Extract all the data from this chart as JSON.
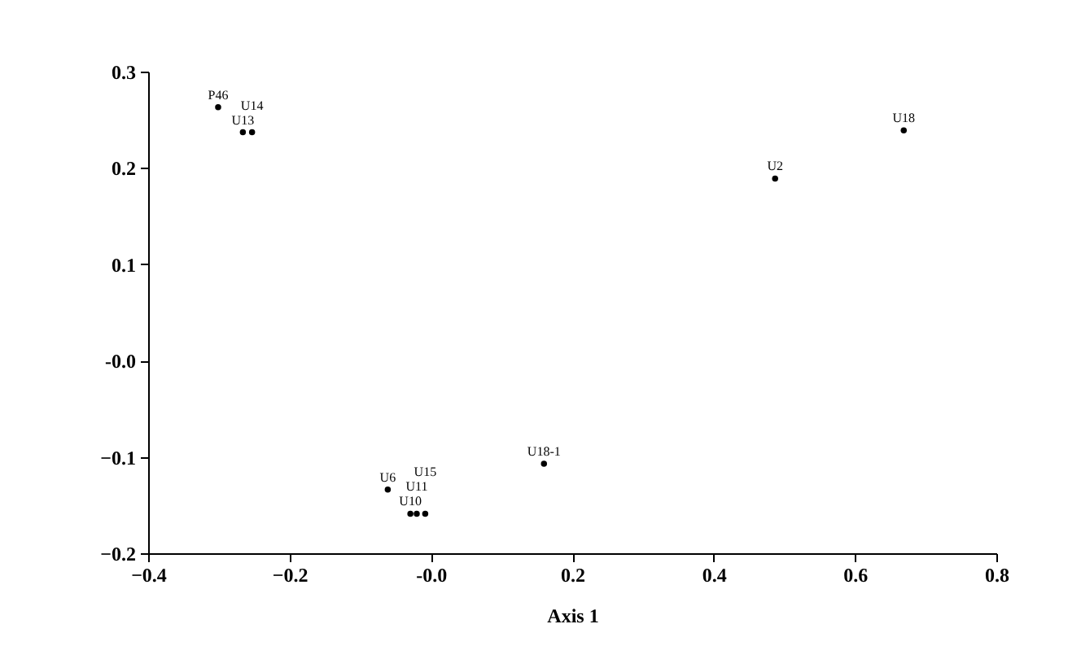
{
  "chart_data": {
    "type": "scatter",
    "xlabel": "Axis 1",
    "marker": "circle",
    "grid": false,
    "xlim": [
      -0.4,
      0.8
    ],
    "ylim": [
      -0.2,
      0.3
    ],
    "xticks": [
      -0.4,
      -0.2,
      {
        "value": 0,
        "label": "-0.0"
      },
      0.2,
      0.4,
      0.6,
      0.8
    ],
    "yticks": [
      -0.2,
      -0.1,
      {
        "value": 0,
        "label": "-0.0"
      },
      0.1,
      0.2,
      0.3
    ],
    "series": [
      {
        "color": "#000000",
        "x": [
          -0.301,
          -0.266,
          -0.253,
          0.487,
          0.669,
          0.16,
          -0.061,
          -0.029,
          -0.02,
          -0.008
        ],
        "values": [
          0.263,
          0.237,
          0.237,
          0.189,
          0.239,
          -0.107,
          -0.134,
          -0.159,
          -0.159,
          -0.159
        ],
        "value_labels": [
          "P46",
          "U13",
          "U14",
          "U2",
          "U18",
          "U18-1",
          "U6",
          "U10",
          "U11",
          "U15"
        ]
      }
    ]
  }
}
